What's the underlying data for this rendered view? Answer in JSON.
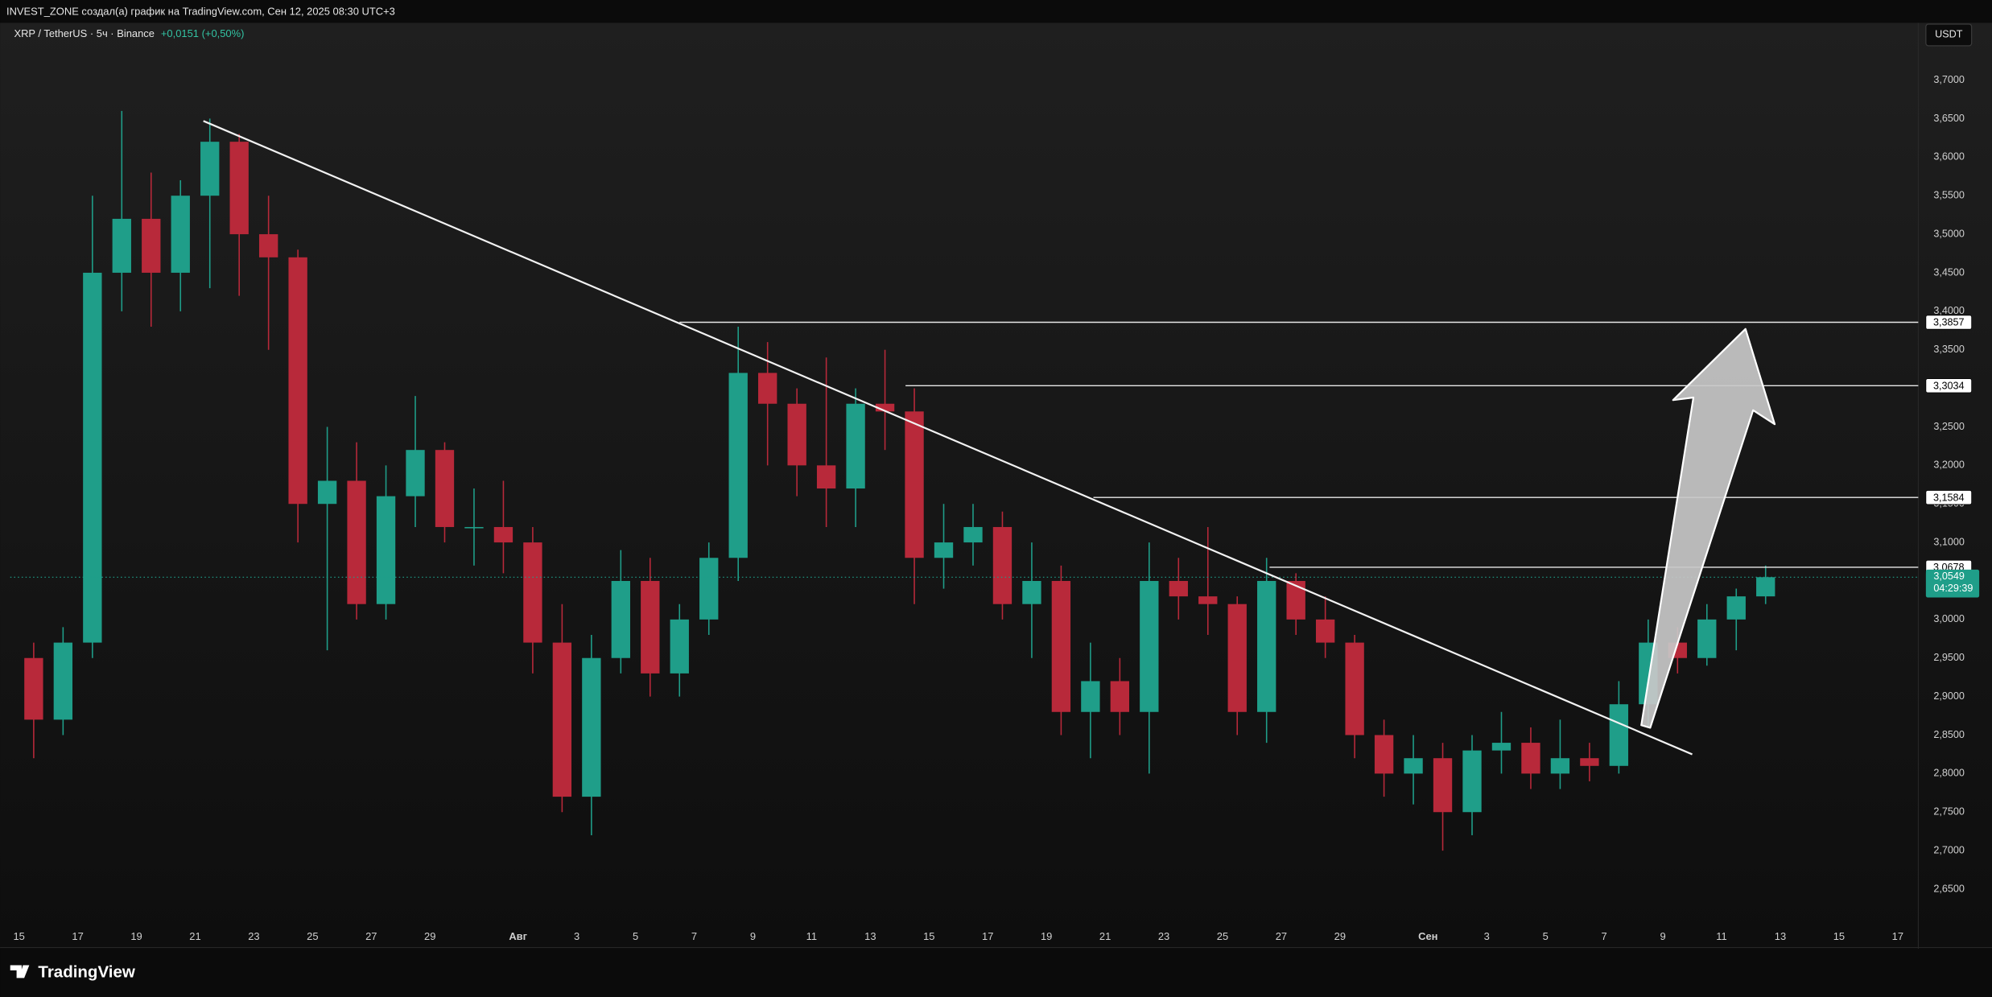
{
  "header": {
    "caption": "INVEST_ZONE создал(а) график на TradingView.com, Сен 12, 2025 08:30 UTC+3",
    "symbol": "XRP / TetherUS · 5ч · Binance",
    "change": "+0,0151 (+0,50%)",
    "currency": "USDT"
  },
  "footer": {
    "logo": "TradingView"
  },
  "chart_data": {
    "type": "candlestick",
    "up_color": "#1f9e89",
    "down_color": "#b8293a",
    "xlim": [
      14.7,
      79.7
    ],
    "ylim": [
      2.576,
      3.771
    ],
    "xticks": [
      15,
      17,
      19,
      21,
      23,
      25,
      27,
      29,
      {
        "value": 32,
        "label": "Авг"
      },
      {
        "value": 34,
        "label": "3"
      },
      {
        "value": 36,
        "label": "5"
      },
      {
        "value": 38,
        "label": "7"
      },
      {
        "value": 40,
        "label": "9"
      },
      {
        "value": 42,
        "label": "11"
      },
      {
        "value": 44,
        "label": "13"
      },
      {
        "value": 46,
        "label": "15"
      },
      {
        "value": 48,
        "label": "17"
      },
      {
        "value": 50,
        "label": "19"
      },
      {
        "value": 52,
        "label": "21"
      },
      {
        "value": 54,
        "label": "23"
      },
      {
        "value": 56,
        "label": "25"
      },
      {
        "value": 58,
        "label": "27"
      },
      {
        "value": 60,
        "label": "29"
      },
      {
        "value": 63,
        "label": "Сен"
      },
      {
        "value": 65,
        "label": "3"
      },
      {
        "value": 67,
        "label": "5"
      },
      {
        "value": 69,
        "label": "7"
      },
      {
        "value": 71,
        "label": "9"
      },
      {
        "value": 73,
        "label": "11"
      },
      {
        "value": 75,
        "label": "13"
      },
      {
        "value": 77,
        "label": "15"
      },
      {
        "value": 79,
        "label": "17"
      }
    ],
    "yticks": [
      {
        "value": 2.65,
        "label": "2,6500"
      },
      {
        "value": 2.7,
        "label": "2,7000"
      },
      {
        "value": 2.75,
        "label": "2,7500"
      },
      {
        "value": 2.8,
        "label": "2,8000"
      },
      {
        "value": 2.85,
        "label": "2,8500"
      },
      {
        "value": 2.9,
        "label": "2,9000"
      },
      {
        "value": 2.95,
        "label": "2,9500"
      },
      {
        "value": 3.0,
        "label": "3,0000"
      },
      {
        "value": 3.05,
        "label": "3,0500"
      },
      {
        "value": 3.1,
        "label": "3,1000"
      },
      {
        "value": 3.15,
        "label": "3,1500"
      },
      {
        "value": 3.2,
        "label": "3,2000"
      },
      {
        "value": 3.25,
        "label": "3,2500"
      },
      {
        "value": 3.3,
        "label": "3,3000"
      },
      {
        "value": 3.35,
        "label": "3,3500"
      },
      {
        "value": 3.4,
        "label": "3,4000"
      },
      {
        "value": 3.45,
        "label": "3,4500"
      },
      {
        "value": 3.5,
        "label": "3,5000"
      },
      {
        "value": 3.55,
        "label": "3,5500"
      },
      {
        "value": 3.6,
        "label": "3,6000"
      },
      {
        "value": 3.65,
        "label": "3,6500"
      },
      {
        "value": 3.7,
        "label": "3,7000"
      }
    ],
    "x": [
      15,
      16,
      17,
      18,
      19,
      20,
      21,
      22,
      23,
      24,
      25,
      26,
      27,
      28,
      29,
      30,
      31,
      32,
      33,
      34,
      35,
      36,
      37,
      38,
      39,
      40,
      41,
      42,
      43,
      44,
      45,
      46,
      47,
      48,
      49,
      50,
      51,
      52,
      53,
      54,
      55,
      56,
      57,
      58,
      59,
      60,
      61,
      62,
      63,
      64,
      65,
      66,
      67,
      68,
      69,
      70,
      71,
      72,
      73,
      74
    ],
    "open": [
      2.95,
      2.87,
      2.97,
      3.45,
      3.52,
      3.45,
      3.55,
      3.62,
      3.5,
      3.47,
      3.15,
      3.18,
      3.02,
      3.16,
      3.22,
      3.12,
      3.12,
      3.1,
      2.97,
      2.77,
      2.95,
      3.05,
      2.93,
      3.0,
      3.08,
      3.32,
      3.28,
      3.2,
      3.17,
      3.28,
      3.27,
      3.08,
      3.1,
      3.12,
      3.02,
      3.05,
      2.88,
      2.92,
      2.88,
      3.05,
      3.03,
      3.02,
      2.88,
      3.05,
      3.0,
      2.97,
      2.85,
      2.8,
      2.82,
      2.75,
      2.83,
      2.84,
      2.8,
      2.82,
      2.81,
      2.89,
      2.97,
      2.95,
      3.0,
      3.03
    ],
    "high": [
      2.97,
      2.99,
      3.55,
      3.66,
      3.58,
      3.57,
      3.65,
      3.63,
      3.55,
      3.48,
      3.25,
      3.23,
      3.2,
      3.29,
      3.23,
      3.17,
      3.18,
      3.12,
      3.02,
      2.98,
      3.09,
      3.08,
      3.02,
      3.1,
      3.38,
      3.36,
      3.3,
      3.34,
      3.3,
      3.35,
      3.3,
      3.15,
      3.15,
      3.14,
      3.1,
      3.07,
      2.97,
      2.95,
      3.1,
      3.08,
      3.12,
      3.03,
      3.08,
      3.06,
      3.03,
      2.98,
      2.87,
      2.85,
      2.84,
      2.85,
      2.88,
      2.86,
      2.87,
      2.84,
      2.92,
      3.0,
      2.99,
      3.02,
      3.04,
      3.07
    ],
    "low": [
      2.82,
      2.85,
      2.95,
      3.4,
      3.38,
      3.4,
      3.43,
      3.42,
      3.35,
      3.1,
      2.96,
      3.0,
      3.0,
      3.12,
      3.1,
      3.07,
      3.06,
      2.93,
      2.75,
      2.72,
      2.93,
      2.9,
      2.9,
      2.98,
      3.05,
      3.2,
      3.16,
      3.12,
      3.12,
      3.22,
      3.02,
      3.04,
      3.07,
      3.0,
      2.95,
      2.85,
      2.82,
      2.85,
      2.8,
      3.0,
      2.98,
      2.85,
      2.84,
      2.98,
      2.95,
      2.82,
      2.77,
      2.76,
      2.7,
      2.72,
      2.8,
      2.78,
      2.78,
      2.79,
      2.8,
      2.86,
      2.93,
      2.94,
      2.96,
      3.02
    ],
    "close": [
      2.87,
      2.97,
      3.45,
      3.52,
      3.45,
      3.55,
      3.62,
      3.5,
      3.47,
      3.15,
      3.18,
      3.02,
      3.16,
      3.22,
      3.12,
      3.12,
      3.1,
      2.97,
      2.77,
      2.95,
      3.05,
      2.93,
      3.0,
      3.08,
      3.32,
      3.28,
      3.2,
      3.17,
      3.28,
      3.27,
      3.08,
      3.1,
      3.12,
      3.02,
      3.05,
      2.88,
      2.92,
      2.88,
      3.05,
      3.03,
      3.02,
      2.88,
      3.05,
      3.0,
      2.97,
      2.85,
      2.8,
      2.82,
      2.75,
      2.83,
      2.84,
      2.8,
      2.82,
      2.81,
      2.89,
      2.97,
      2.95,
      3.0,
      3.03,
      3.0549
    ],
    "levels": [
      {
        "value": 3.3857,
        "label": "3,3857",
        "start": 37.5
      },
      {
        "value": 3.3034,
        "label": "3,3034",
        "start": 45.2
      },
      {
        "value": 3.1584,
        "label": "3,1584",
        "start": 51.6
      },
      {
        "value": 3.0678,
        "label": "3,0678",
        "start": 57.6
      }
    ],
    "trendline": {
      "x": [
        21.28,
        72.0
      ],
      "y": [
        3.647,
        2.825
      ]
    },
    "last_price": {
      "value": 3.0549,
      "label": "3,0549",
      "countdown": "04:29:39"
    }
  }
}
